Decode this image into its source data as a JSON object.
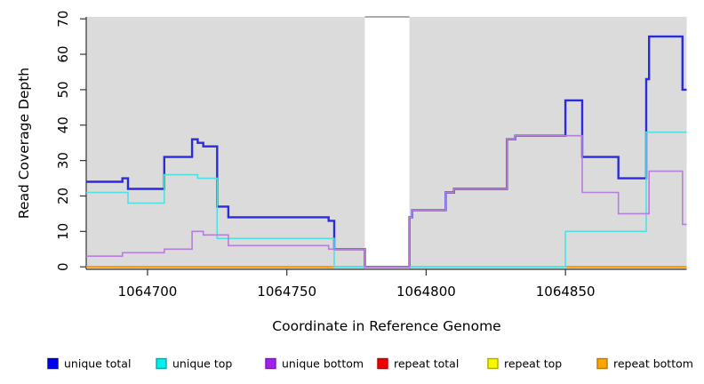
{
  "chart_data": {
    "type": "line",
    "subtype": "step-coverage",
    "title": "",
    "xlabel": "Coordinate in Reference Genome",
    "ylabel": "Read Coverage Depth",
    "xlim": [
      1064678,
      1064893.5
    ],
    "ylim": [
      0,
      70
    ],
    "x_ticks": [
      1064700,
      1064750,
      1064800,
      1064850
    ],
    "y_ticks": [
      0,
      10,
      20,
      30,
      40,
      50,
      60,
      70
    ],
    "grid": false,
    "plot_background": "#DBDBDB",
    "axis_color": "#333333",
    "gap_region": {
      "from": 1064778,
      "to": 1064794,
      "color": "#FFFFFF",
      "top_border": "#909090"
    },
    "zero_overlap_segment": {
      "from": 1064794,
      "to": 1064850,
      "value": 0,
      "color": "#90EE90"
    },
    "series": [
      {
        "name": "repeat total",
        "color": "#E00000",
        "line_width": 1.6,
        "steps": [
          [
            1064678,
            0
          ]
        ]
      },
      {
        "name": "repeat top",
        "color": "#F2F200",
        "line_width": 1.6,
        "steps": [
          [
            1064678,
            0
          ]
        ]
      },
      {
        "name": "repeat bottom",
        "color": "#FF9500",
        "line_width": 2.0,
        "steps": [
          [
            1064678,
            0
          ]
        ]
      },
      {
        "name": "unique total",
        "color": "#2B2BE0",
        "line_width": 2.4,
        "steps": [
          [
            1064678,
            24
          ],
          [
            1064691,
            25
          ],
          [
            1064693,
            22
          ],
          [
            1064706,
            31
          ],
          [
            1064716,
            36
          ],
          [
            1064718,
            35
          ],
          [
            1064720,
            34
          ],
          [
            1064725,
            17
          ],
          [
            1064729,
            14
          ],
          [
            1064765,
            13
          ],
          [
            1064767,
            5
          ],
          [
            1064778,
            0
          ],
          [
            1064794,
            14
          ],
          [
            1064795,
            16
          ],
          [
            1064807,
            21
          ],
          [
            1064810,
            22
          ],
          [
            1064829,
            36
          ],
          [
            1064832,
            37
          ],
          [
            1064850,
            47
          ],
          [
            1064856,
            31
          ],
          [
            1064869,
            25
          ],
          [
            1064879,
            53
          ],
          [
            1064880,
            65
          ],
          [
            1064892,
            50
          ]
        ]
      },
      {
        "name": "unique top",
        "color": "#4FE1E1",
        "line_width": 1.6,
        "steps": [
          [
            1064678,
            21
          ],
          [
            1064693,
            18
          ],
          [
            1064706,
            26
          ],
          [
            1064718,
            25
          ],
          [
            1064725,
            8
          ],
          [
            1064767,
            0
          ],
          [
            1064850,
            10
          ],
          [
            1064879,
            38
          ]
        ]
      },
      {
        "name": "unique bottom",
        "color": "#B77EDB",
        "line_width": 1.6,
        "steps": [
          [
            1064678,
            3
          ],
          [
            1064691,
            4
          ],
          [
            1064706,
            5
          ],
          [
            1064716,
            10
          ],
          [
            1064720,
            9
          ],
          [
            1064729,
            6
          ],
          [
            1064765,
            5
          ],
          [
            1064778,
            0
          ],
          [
            1064794,
            14
          ],
          [
            1064795,
            16
          ],
          [
            1064807,
            21
          ],
          [
            1064810,
            22
          ],
          [
            1064829,
            36
          ],
          [
            1064832,
            37
          ],
          [
            1064856,
            21
          ],
          [
            1064869,
            15
          ],
          [
            1064880,
            27
          ],
          [
            1064892,
            12
          ]
        ]
      }
    ],
    "legend": [
      {
        "label": "unique total",
        "fill": "#0000F0",
        "border": "#0000B4"
      },
      {
        "label": "unique top",
        "fill": "#00F0F0",
        "border": "#00AAAA"
      },
      {
        "label": "unique bottom",
        "fill": "#A020F0",
        "border": "#7817B4"
      },
      {
        "label": "repeat total",
        "fill": "#F00000",
        "border": "#B40000"
      },
      {
        "label": "repeat top",
        "fill": "#F8F800",
        "border": "#ACAC00"
      },
      {
        "label": "repeat bottom",
        "fill": "#FFA500",
        "border": "#B97800"
      }
    ],
    "legend_position": "bottom"
  },
  "layout_note": "R-style coverage depth plot with white no-data band"
}
